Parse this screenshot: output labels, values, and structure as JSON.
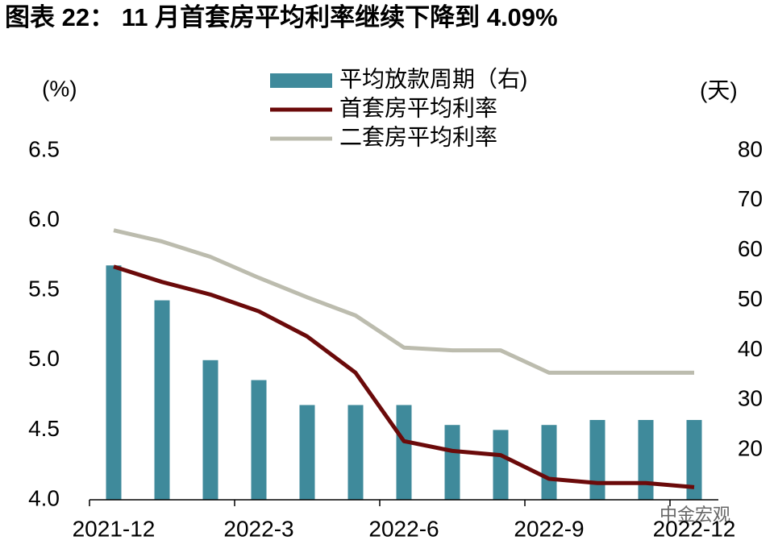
{
  "chart_data": {
    "type": "bar-line",
    "title": "图表 22：  11 月首套房平均利率继续下降到 4.09%",
    "y_label": "(%)",
    "y2_label": "(天)",
    "watermark": "中金宏观",
    "categories": [
      "2021-12",
      null,
      null,
      "2022-3",
      null,
      null,
      "2022-6",
      null,
      null,
      "2022-9",
      null,
      null,
      "2022-12"
    ],
    "ylim": [
      4.0,
      6.5
    ],
    "yticks": [
      {
        "value": 4.0,
        "label": "4.0"
      },
      4.5,
      {
        "value": 5.0,
        "label": "5.0"
      },
      5.5,
      {
        "value": 6.0,
        "label": "6.0"
      },
      6.5
    ],
    "y2lim": [
      10,
      80
    ],
    "y2ticks": [
      20,
      30,
      40,
      50,
      60,
      70,
      80
    ],
    "grid": false,
    "series": [
      {
        "name": "平均放款周期（右)",
        "type": "bar",
        "axis": "y2",
        "color": "#3f8a9b",
        "values": [
          57,
          50,
          38,
          34,
          29,
          29,
          29,
          25,
          24,
          25,
          26,
          26,
          26
        ]
      },
      {
        "name": "首套房平均利率",
        "type": "line",
        "color": "#6b0a0a",
        "values": [
          5.67,
          5.56,
          5.47,
          5.35,
          5.17,
          4.91,
          4.42,
          4.35,
          4.32,
          4.15,
          4.12,
          4.12,
          4.09
        ]
      },
      {
        "name": "二套房平均利率",
        "type": "line",
        "color": "#bcbcae",
        "values": [
          5.93,
          5.85,
          5.74,
          5.59,
          5.45,
          5.32,
          5.09,
          5.07,
          5.07,
          4.91,
          4.91,
          4.91,
          4.91
        ]
      }
    ]
  }
}
